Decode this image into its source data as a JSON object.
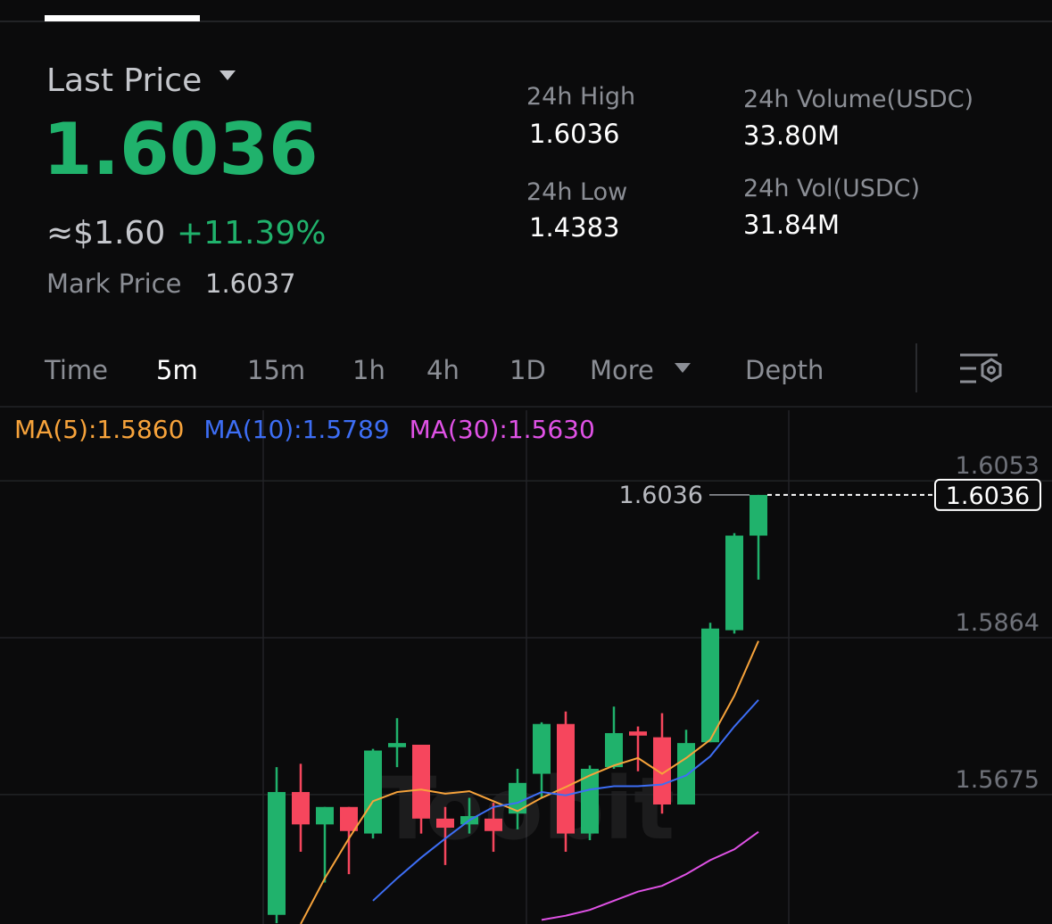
{
  "header": {
    "last_price_label": "Last Price",
    "last_price": "1.6036",
    "usd_price": "≈$1.60",
    "change": "+11.39%",
    "mark_price_label": "Mark Price",
    "mark_price": "1.6037"
  },
  "stats": [
    {
      "label": "24h High",
      "value": "1.6036"
    },
    {
      "label": "24h Low",
      "value": "1.4383"
    },
    {
      "label": "24h Volume(USDC)",
      "value": "33.80M"
    },
    {
      "label": "24h Vol(USDC)",
      "value": "31.84M"
    }
  ],
  "tabs": [
    "Time",
    "5m",
    "15m",
    "1h",
    "4h",
    "1D",
    "More",
    "Depth"
  ],
  "chart_data": {
    "type": "candlestick",
    "watermark": "Toobit",
    "up_color": "#20b26c",
    "down_color": "#f6465d",
    "ylim": [
      1.5519,
      1.6138
    ],
    "yticks": [
      1.5675,
      1.5864,
      1.6053
    ],
    "grid": true,
    "high_marker": 1.6036,
    "last_price": 1.6036,
    "candles": [
      {
        "open": 1.553,
        "high": 1.5708,
        "low": 1.552,
        "close": 1.5678
      },
      {
        "open": 1.5678,
        "high": 1.5712,
        "low": 1.5606,
        "close": 1.5639
      },
      {
        "open": 1.5639,
        "high": 1.566,
        "low": 1.5569,
        "close": 1.566
      },
      {
        "open": 1.566,
        "high": 1.566,
        "low": 1.5579,
        "close": 1.5631
      },
      {
        "open": 1.5628,
        "high": 1.573,
        "low": 1.5622,
        "close": 1.5728
      },
      {
        "open": 1.5732,
        "high": 1.5767,
        "low": 1.5708,
        "close": 1.5737
      },
      {
        "open": 1.5735,
        "high": 1.5735,
        "low": 1.5628,
        "close": 1.5646
      },
      {
        "open": 1.5646,
        "high": 1.566,
        "low": 1.559,
        "close": 1.5635
      },
      {
        "open": 1.5639,
        "high": 1.5671,
        "low": 1.5628,
        "close": 1.5649
      },
      {
        "open": 1.5646,
        "high": 1.5665,
        "low": 1.5606,
        "close": 1.5631
      },
      {
        "open": 1.5652,
        "high": 1.5706,
        "low": 1.5633,
        "close": 1.5689
      },
      {
        "open": 1.57,
        "high": 1.5762,
        "low": 1.5671,
        "close": 1.576
      },
      {
        "open": 1.576,
        "high": 1.5775,
        "low": 1.5606,
        "close": 1.5628
      },
      {
        "open": 1.5628,
        "high": 1.571,
        "low": 1.562,
        "close": 1.5706
      },
      {
        "open": 1.5708,
        "high": 1.5781,
        "low": 1.5706,
        "close": 1.5749
      },
      {
        "open": 1.5751,
        "high": 1.5757,
        "low": 1.5703,
        "close": 1.5746
      },
      {
        "open": 1.5744,
        "high": 1.5773,
        "low": 1.5652,
        "close": 1.5663
      },
      {
        "open": 1.5663,
        "high": 1.5753,
        "low": 1.5663,
        "close": 1.5737
      },
      {
        "open": 1.5738,
        "high": 1.5882,
        "low": 1.5738,
        "close": 1.5875
      },
      {
        "open": 1.5873,
        "high": 1.599,
        "low": 1.5869,
        "close": 1.5987
      },
      {
        "open": 1.5987,
        "high": 1.6036,
        "low": 1.5934,
        "close": 1.6036
      }
    ],
    "series": [
      {
        "name": "MA(5):1.5860",
        "color": "#f7a33b",
        "values": [
          null,
          1.5519,
          1.5574,
          1.5622,
          1.5667,
          1.5678,
          1.5681,
          1.5676,
          1.5679,
          1.5667,
          1.5655,
          1.5671,
          1.5684,
          1.5698,
          1.571,
          1.5719,
          1.57,
          1.5719,
          1.5741,
          1.5794,
          1.586
        ]
      },
      {
        "name": "MA(10):1.5789",
        "color": "#3d6ef5",
        "values": [
          null,
          null,
          null,
          null,
          1.5547,
          1.5574,
          1.5599,
          1.5622,
          1.5644,
          1.566,
          1.5665,
          1.5678,
          1.5674,
          1.5681,
          1.5685,
          1.5685,
          1.5687,
          1.5698,
          1.5721,
          1.5757,
          1.5789
        ]
      },
      {
        "name": "MA(30):1.5630",
        "color": "#e052e6",
        "values": [
          null,
          null,
          null,
          null,
          null,
          null,
          null,
          null,
          null,
          null,
          null,
          1.5524,
          1.5529,
          1.5536,
          1.5547,
          1.5558,
          1.5565,
          1.5579,
          1.5596,
          1.5609,
          1.563
        ]
      }
    ]
  }
}
